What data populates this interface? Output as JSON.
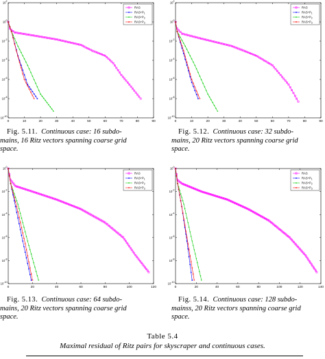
{
  "colors": {
    "RAS": "#ff00ff",
    "RAS+P1": "#0000ff",
    "RAS+P2": "#00cc00",
    "RAS+P3": "#ff0000"
  },
  "figures": [
    {
      "caption_label": "Fig. 5.11.",
      "caption_lines": [
        "Continuous case: 16 subdo-",
        "mains, 16 Ritz vectors spanning coarse grid",
        "space."
      ],
      "chart_data": {
        "type": "line",
        "y_scale": "log",
        "xlim": [
          0,
          90
        ],
        "ylim": [
          1e-10,
          100
        ],
        "x_ticks": [
          "0",
          "10",
          "20",
          "30",
          "40",
          "50",
          "60",
          "70",
          "80",
          "90"
        ],
        "y_ticks": [
          "10^-10",
          "10^-8",
          "10^-6",
          "10^-4",
          "10^-2",
          "10^0",
          "10^2"
        ],
        "legend": {
          "placement": "top-right",
          "entries": [
            "RAS",
            "RAS+P1",
            "RAS+P2",
            "RAS+P3"
          ]
        },
        "series": [
          {
            "name": "RAS",
            "points": [
              [
                0,
                1
              ],
              [
                1,
                0.2
              ],
              [
                4,
                0.08
              ],
              [
                15,
                0.04
              ],
              [
                30,
                0.015
              ],
              [
                45,
                0.004
              ],
              [
                52,
                0.001
              ],
              [
                60,
                0.0003
              ],
              [
                65,
                5e-05
              ],
              [
                70,
                3e-06
              ],
              [
                75,
                3e-07
              ],
              [
                82,
                1e-08
              ]
            ]
          },
          {
            "name": "RAS+P1",
            "points": [
              [
                0,
                1
              ],
              [
                2,
                0.1
              ],
              [
                6,
                0.0003
              ],
              [
                12,
                3e-07
              ],
              [
                18,
                1e-08
              ]
            ]
          },
          {
            "name": "RAS+P2",
            "points": [
              [
                0,
                1
              ],
              [
                2,
                0.1
              ],
              [
                6,
                0.003
              ],
              [
                12,
                3e-05
              ],
              [
                20,
                3e-08
              ],
              [
                28,
                5e-10
              ]
            ]
          },
          {
            "name": "RAS+P3",
            "points": [
              [
                0,
                1
              ],
              [
                2,
                0.1
              ],
              [
                5,
                0.001
              ],
              [
                10,
                1e-06
              ],
              [
                16,
                1e-08
              ]
            ]
          }
        ]
      }
    },
    {
      "caption_label": "Fig. 5.12.",
      "caption_lines": [
        "Continuous case: 32 subdo-",
        "mains, 20 Ritz vectors spanning coarse grid",
        "space."
      ],
      "chart_data": {
        "type": "line",
        "y_scale": "log",
        "xlim": [
          0,
          90
        ],
        "ylim": [
          1e-10,
          100
        ],
        "x_ticks": [
          "0",
          "10",
          "20",
          "30",
          "40",
          "50",
          "60",
          "70",
          "80",
          "90"
        ],
        "y_ticks": [
          "10^-10",
          "10^-8",
          "10^-6",
          "10^-4",
          "10^-2",
          "10^0",
          "10^2"
        ],
        "legend": {
          "placement": "top-right",
          "entries": [
            "RAS",
            "RAS+P1",
            "RAS+P2",
            "RAS+P3"
          ]
        },
        "series": [
          {
            "name": "RAS",
            "points": [
              [
                0,
                1
              ],
              [
                1,
                0.2
              ],
              [
                4,
                0.06
              ],
              [
                15,
                0.02
              ],
              [
                35,
                0.003
              ],
              [
                50,
                0.0003
              ],
              [
                60,
                3e-05
              ],
              [
                65,
                3e-06
              ],
              [
                70,
                3e-07
              ],
              [
                76,
                5e-09
              ]
            ]
          },
          {
            "name": "RAS+P1",
            "points": [
              [
                0,
                1
              ],
              [
                1,
                0.1
              ],
              [
                5,
                0.0005
              ],
              [
                10,
                5e-07
              ],
              [
                14,
                1e-08
              ]
            ]
          },
          {
            "name": "RAS+P2",
            "points": [
              [
                0,
                1
              ],
              [
                1,
                0.1
              ],
              [
                6,
                0.003
              ],
              [
                12,
                3e-05
              ],
              [
                20,
                3e-08
              ],
              [
                26,
                5e-10
              ]
            ]
          },
          {
            "name": "RAS+P3",
            "points": [
              [
                0,
                1
              ],
              [
                1,
                0.1
              ],
              [
                5,
                0.001
              ],
              [
                10,
                1e-06
              ],
              [
                15,
                1e-08
              ]
            ]
          }
        ]
      }
    },
    {
      "caption_label": "Fig. 5.13.",
      "caption_lines": [
        "Continuous case: 64 subdo-",
        "mains, 20 Ritz vectors spanning coarse grid",
        "space."
      ],
      "chart_data": {
        "type": "line",
        "y_scale": "log",
        "xlim": [
          0,
          120
        ],
        "ylim": [
          1e-10,
          1
        ],
        "x_ticks": [
          "0",
          "20",
          "40",
          "60",
          "80",
          "100",
          "120"
        ],
        "y_ticks": [
          "10^-10",
          "10^-8",
          "10^-6",
          "10^-4",
          "10^-2",
          "10^0"
        ],
        "legend": {
          "placement": "top-right",
          "entries": [
            "RAS",
            "RAS+P1",
            "RAS+P2",
            "RAS+P3"
          ]
        },
        "series": [
          {
            "name": "RAS",
            "points": [
              [
                0,
                1
              ],
              [
                2,
                0.1
              ],
              [
                6,
                0.03
              ],
              [
                20,
                0.01
              ],
              [
                40,
                0.002
              ],
              [
                60,
                0.0003
              ],
              [
                80,
                2e-05
              ],
              [
                95,
                1e-06
              ],
              [
                105,
                3e-08
              ],
              [
                116,
                1e-09
              ]
            ]
          },
          {
            "name": "RAS+P1",
            "points": [
              [
                0,
                1
              ],
              [
                2,
                0.05
              ],
              [
                6,
                0.0005
              ],
              [
                12,
                5e-07
              ],
              [
                19,
                2e-10
              ]
            ]
          },
          {
            "name": "RAS+P2",
            "points": [
              [
                0,
                1
              ],
              [
                2,
                0.05
              ],
              [
                8,
                0.0008
              ],
              [
                16,
                5e-07
              ],
              [
                25,
                2e-10
              ]
            ]
          },
          {
            "name": "RAS+P3",
            "points": [
              [
                0,
                1
              ],
              [
                2,
                0.05
              ],
              [
                7,
                0.0005
              ],
              [
                14,
                3e-07
              ],
              [
                20,
                2e-10
              ]
            ]
          }
        ]
      }
    },
    {
      "caption_label": "Fig. 5.14.",
      "caption_lines": [
        "Continuous case: 128 subdo-",
        "mainss, 20 Ritz vectors spanning coarse grid",
        "space."
      ],
      "chart_data": {
        "type": "line",
        "y_scale": "log",
        "xlim": [
          0,
          140
        ],
        "ylim": [
          1e-10,
          1
        ],
        "x_ticks": [
          "0",
          "20",
          "40",
          "60",
          "80",
          "100",
          "120",
          "140"
        ],
        "y_ticks": [
          "10^-10",
          "10^-8",
          "10^-6",
          "10^-4",
          "10^-2",
          "10^0"
        ],
        "legend": {
          "placement": "top-right",
          "entries": [
            "RAS",
            "RAS+P1",
            "RAS+P2",
            "RAS+P3"
          ]
        },
        "series": [
          {
            "name": "RAS",
            "points": [
              [
                0,
                1
              ],
              [
                2,
                0.1
              ],
              [
                6,
                0.05
              ],
              [
                25,
                0.01
              ],
              [
                50,
                0.002
              ],
              [
                70,
                0.0003
              ],
              [
                90,
                3e-05
              ],
              [
                110,
                1e-06
              ],
              [
                125,
                3e-08
              ],
              [
                136,
                1e-09
              ]
            ]
          },
          {
            "name": "RAS+P1",
            "points": [
              [
                0,
                1
              ],
              [
                2,
                0.05
              ],
              [
                6,
                0.0005
              ],
              [
                11,
                5e-07
              ],
              [
                16,
                2e-10
              ]
            ]
          },
          {
            "name": "RAS+P2",
            "points": [
              [
                0,
                1
              ],
              [
                2,
                0.05
              ],
              [
                8,
                0.0008
              ],
              [
                16,
                5e-07
              ],
              [
                25,
                2e-10
              ]
            ]
          },
          {
            "name": "RAS+P3",
            "points": [
              [
                0,
                1
              ],
              [
                2,
                0.05
              ],
              [
                6,
                0.0005
              ],
              [
                12,
                3e-07
              ],
              [
                18,
                2e-10
              ]
            ]
          }
        ]
      }
    }
  ],
  "table": {
    "title": "Table 5.4",
    "subtitle": "Maximal residual of Ritz pairs for skyscraper and continuous cases."
  }
}
